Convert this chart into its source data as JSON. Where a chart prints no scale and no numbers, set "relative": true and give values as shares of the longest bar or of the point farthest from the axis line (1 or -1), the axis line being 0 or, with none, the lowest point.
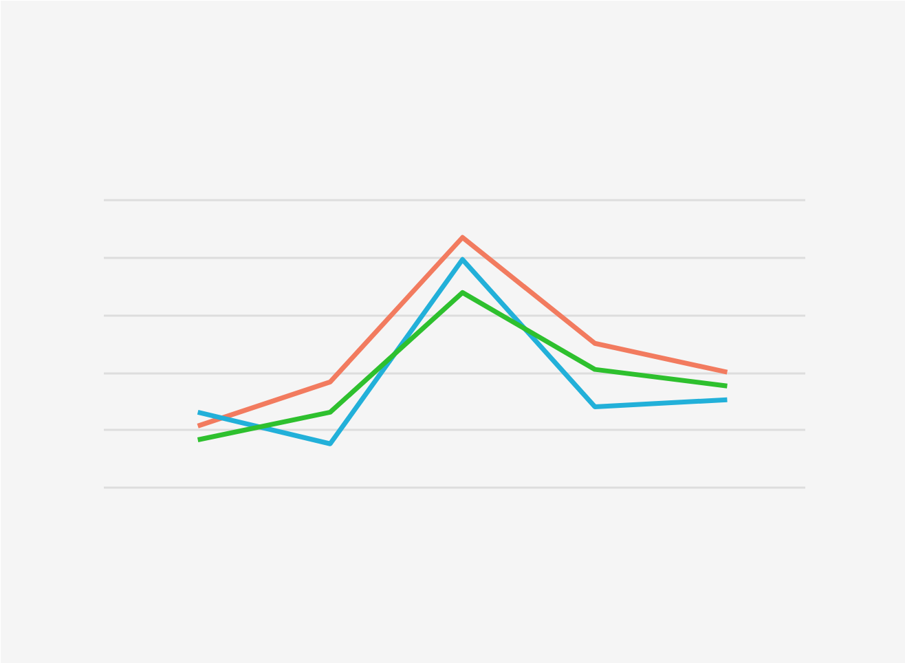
{
  "chart_data": {
    "type": "line",
    "relative": true,
    "grid": "y",
    "marker": "none",
    "line_style": "solid",
    "categories": [
      null,
      null,
      null,
      null,
      null
    ],
    "series": [
      {
        "color": "#f27b5f",
        "values": [
          0.247,
          0.423,
          1.0,
          0.577,
          0.462
        ]
      },
      {
        "color": "#22b0d9",
        "values": [
          0.302,
          0.176,
          0.912,
          0.324,
          0.352
        ]
      },
      {
        "color": "#2ec02e",
        "values": [
          0.192,
          0.302,
          0.78,
          0.473,
          0.407
        ]
      }
    ]
  }
}
